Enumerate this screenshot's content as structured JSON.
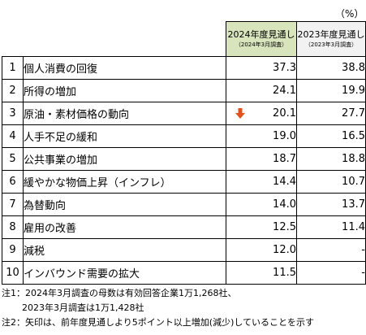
{
  "unit": "（%）",
  "headers": {
    "col2024": {
      "title": "2024年度見通し",
      "sub": "（2024年3月調査）"
    },
    "col2023": {
      "title": "2023年度見通し",
      "sub": "（2023年3月調査）"
    }
  },
  "rows": [
    {
      "rank": "1",
      "item": "個人消費の回復",
      "v2024": "37.3",
      "v2023": "38.8"
    },
    {
      "rank": "2",
      "item": "所得の増加",
      "v2024": "24.1",
      "v2023": "19.9"
    },
    {
      "rank": "3",
      "item": "原油・素材価格の動向",
      "v2024": "20.1",
      "v2023": "27.7",
      "arrow": "down"
    },
    {
      "rank": "4",
      "item": "人手不足の緩和",
      "v2024": "19.0",
      "v2023": "16.5"
    },
    {
      "rank": "5",
      "item": "公共事業の増加",
      "v2024": "18.7",
      "v2023": "18.8"
    },
    {
      "rank": "6",
      "item": "緩やかな物価上昇（インフレ）",
      "v2024": "14.4",
      "v2023": "10.7"
    },
    {
      "rank": "7",
      "item": "為替動向",
      "v2024": "14.0",
      "v2023": "13.7"
    },
    {
      "rank": "8",
      "item": "雇用の改善",
      "v2024": "12.5",
      "v2023": "11.4"
    },
    {
      "rank": "9",
      "item": "減税",
      "v2024": "12.0",
      "v2023": "-"
    },
    {
      "rank": "10",
      "item": "インバウンド需要の拡大",
      "v2024": "11.5",
      "v2023": "-"
    }
  ],
  "notes": {
    "note1_line1": "注1：2024年3月調査の母数は有効回答企業1万1,268社、",
    "note1_line2": "2023年3月調査は1万1,428社",
    "note2": "注2：矢印は、前年度見通しより5ポイント以上増加(減少)していることを示す"
  },
  "colors": {
    "header_current": "#d8e4bc",
    "header_previous": "#f2f2f2",
    "arrow": "#e0531f"
  },
  "icons": {
    "arrow_down": "arrow-down-icon"
  }
}
